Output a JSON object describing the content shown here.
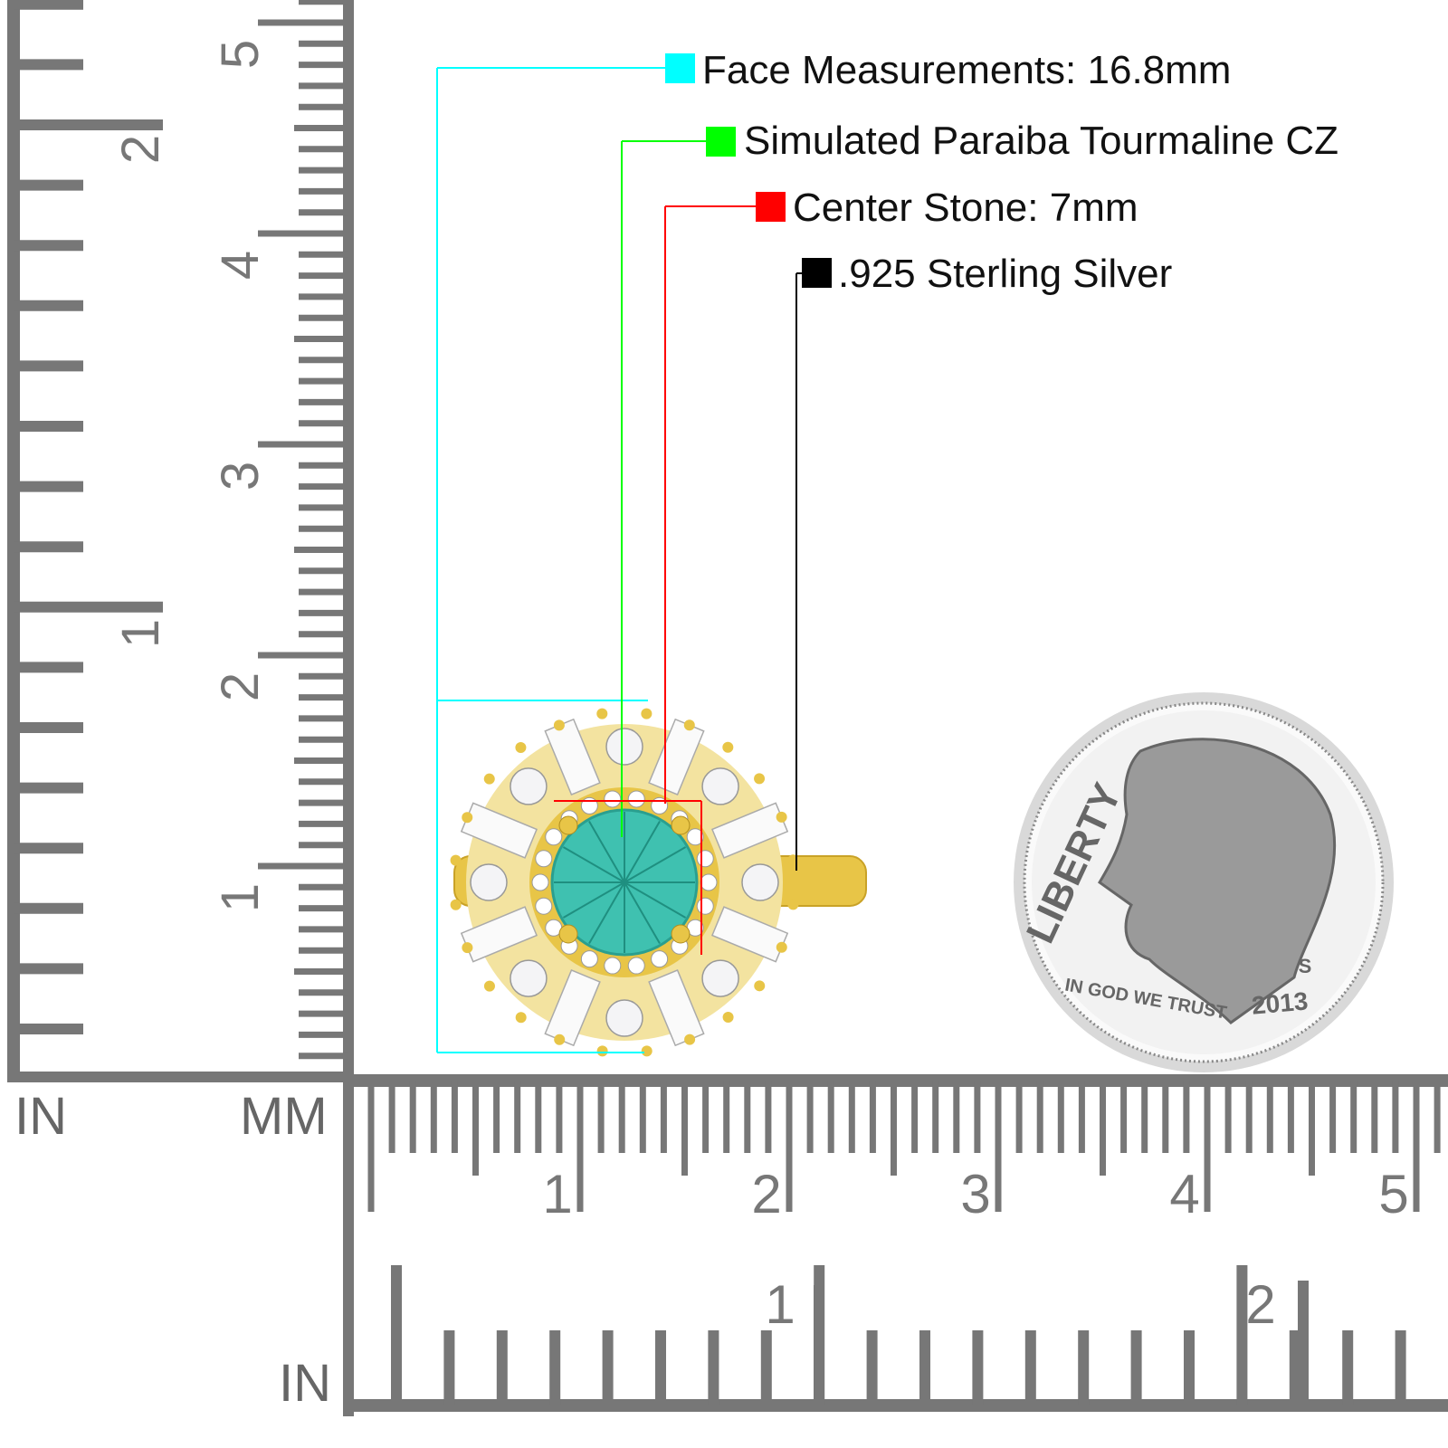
{
  "specs": [
    {
      "label": "Face Measurements: 16.8mm",
      "color": "#00FFFF"
    },
    {
      "label": "Simulated Paraiba Tourmaline CZ",
      "color": "#00FF00"
    },
    {
      "label": "Center Stone: 7mm",
      "color": "#FF0000"
    },
    {
      "label": ".925 Sterling Silver",
      "color": "#000000"
    }
  ],
  "ruler": {
    "unit_in": "IN",
    "unit_mm": "MM",
    "unit_in_bottom": "IN",
    "vertical_mm_labels": [
      "1",
      "2",
      "3",
      "4",
      "5"
    ],
    "vertical_in_labels": [
      "1",
      "2"
    ],
    "horizontal_mm_labels": [
      "1",
      "2",
      "3",
      "4",
      "5"
    ],
    "horizontal_in_labels": [
      "1",
      "2"
    ],
    "color": "#777777"
  },
  "coin": {
    "top_text": "LIBERTY",
    "motto": "IN GOD WE TRUST",
    "year": "2013",
    "mint": "S"
  },
  "colors": {
    "gold": "#E8C547",
    "stone": "#3FC1B0"
  }
}
